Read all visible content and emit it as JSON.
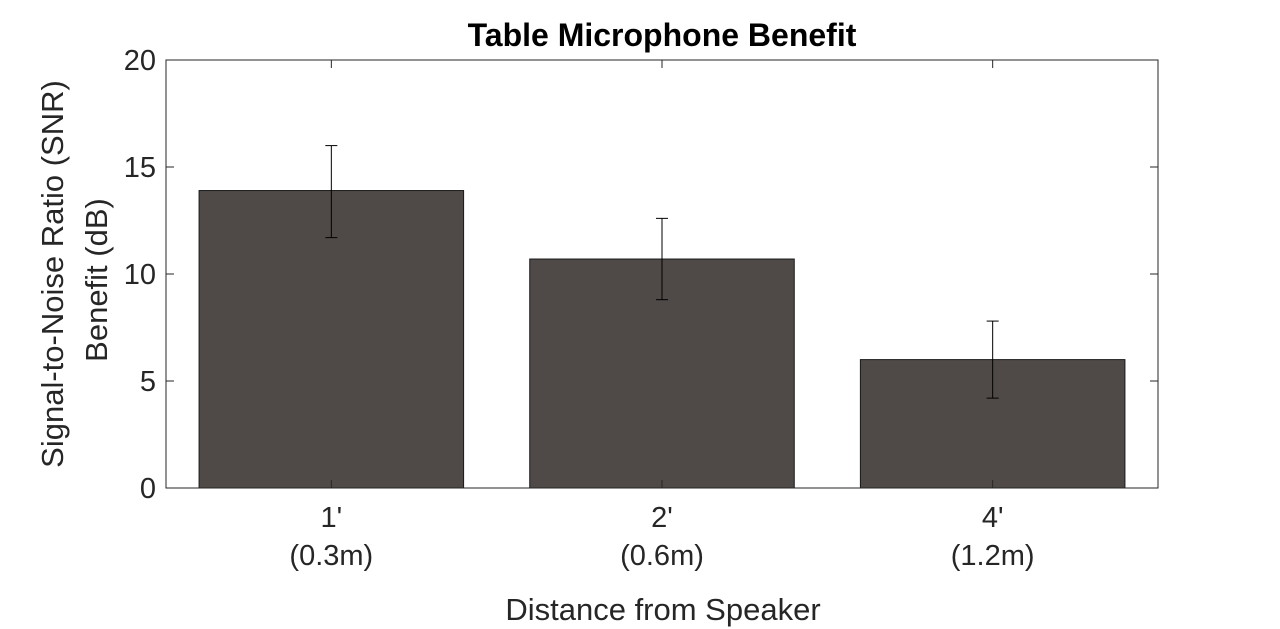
{
  "chart_data": {
    "type": "bar",
    "title": "Table Microphone Benefit",
    "xlabel": "Distance from Speaker",
    "ylabel_line1": "Signal-to-Noise Ratio (SNR)",
    "ylabel_line2": "Benefit (dB)",
    "categories": [
      "1'",
      "2'",
      "4'"
    ],
    "category_sublabels": [
      "(0.3m)",
      "(0.6m)",
      "(1.2m)"
    ],
    "values": [
      13.9,
      10.7,
      6.0
    ],
    "error_low": [
      11.7,
      8.8,
      4.2
    ],
    "error_high": [
      16.0,
      12.6,
      7.8
    ],
    "ylim": [
      0,
      20
    ],
    "yticks": [
      "0",
      "5",
      "10",
      "15",
      "20"
    ],
    "grid": false,
    "bar_color": "#4f4a48"
  }
}
